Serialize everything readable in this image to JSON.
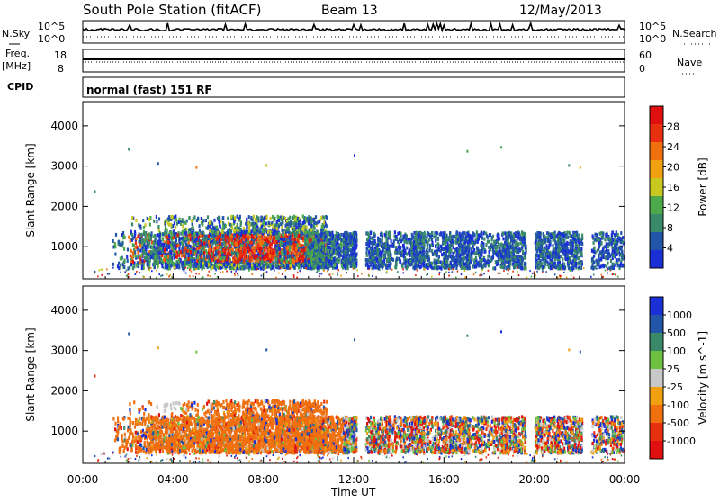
{
  "header": {
    "station": "South Pole Station (fitACF)",
    "beam": "Beam 13",
    "date": "12/May/2013"
  },
  "sky_panel": {
    "left_label": "N.Sky",
    "right_label": "N.Search",
    "left_ticks": [
      "10^5",
      "10^0"
    ],
    "right_ticks": [
      "10^5",
      "10^0"
    ]
  },
  "freq_panel": {
    "left_label_1": "Freq.",
    "left_label_2": "[MHz]",
    "right_label": "Nave",
    "left_ticks": [
      "18",
      "8"
    ],
    "right_ticks": [
      "60",
      "0"
    ]
  },
  "cpid": {
    "label": "CPID",
    "value": "normal (fast) 151 RF"
  },
  "colors": {
    "power": [
      "#1a2fd6",
      "#2255a8",
      "#3a8a6a",
      "#4caa4c",
      "#c8c820",
      "#f0a010",
      "#f07010",
      "#e83010",
      "#e01010"
    ],
    "velocity": [
      "#1a2fd6",
      "#2255a8",
      "#3a8a6a",
      "#6ec040",
      "#c8c8c8",
      "#f0a010",
      "#f07010",
      "#e83010",
      "#e01010"
    ]
  },
  "chart_data": [
    {
      "type": "heatmap",
      "name": "power",
      "xlabel": "Time UT",
      "ylabel": "Slant Range [km]",
      "colorbar_label": "Power [dB]",
      "x_ticks": [
        "00:00",
        "04:00",
        "08:00",
        "12:00",
        "16:00",
        "20:00",
        "00:00"
      ],
      "y_ticks": [
        1000,
        2000,
        3000,
        4000
      ],
      "ylim": [
        200,
        4600
      ],
      "xlim_hours": [
        0,
        24
      ],
      "colorbar_ticks": [
        "4",
        "8",
        "12",
        "16",
        "20",
        "24",
        "28"
      ],
      "cells": [
        [
          1.2,
          8.0,
          3
        ],
        [
          1.5,
          7.5,
          3
        ],
        [
          2.0,
          7.0,
          4
        ],
        [
          2.5,
          6.5,
          3
        ],
        [
          2.7,
          8.5,
          3
        ],
        [
          3.0,
          9.0,
          3
        ],
        [
          3.5,
          7.8,
          4
        ],
        [
          4.8,
          10.0,
          3
        ],
        [
          5.5,
          9.5,
          4
        ],
        [
          6.5,
          9.8,
          4
        ],
        [
          7.5,
          9.5,
          4
        ],
        [
          8.5,
          10.5,
          3
        ],
        [
          9.2,
          10.2,
          4
        ],
        [
          9.8,
          10.0,
          3
        ],
        [
          10.5,
          11.0,
          3
        ],
        [
          11.5,
          11.5,
          2
        ],
        [
          12.5,
          13.0,
          2
        ],
        [
          13.5,
          14.5,
          2
        ],
        [
          14.5,
          15.5,
          2
        ],
        [
          16.0,
          16.5,
          2
        ],
        [
          17.0,
          18.0,
          2
        ],
        [
          18.5,
          19.0,
          2
        ],
        [
          20.0,
          20.5,
          2
        ],
        [
          21.0,
          21.5,
          2
        ],
        [
          22.5,
          23.5,
          2
        ]
      ]
    },
    {
      "type": "heatmap",
      "name": "velocity",
      "xlabel": "Time UT",
      "ylabel": "Slant Range [km]",
      "colorbar_label": "Velocity [m s^-1]",
      "x_ticks": [
        "00:00",
        "04:00",
        "08:00",
        "12:00",
        "16:00",
        "20:00",
        "00:00"
      ],
      "y_ticks": [
        1000,
        2000,
        3000,
        4000
      ],
      "ylim": [
        200,
        4600
      ],
      "xlim_hours": [
        0,
        24
      ],
      "colorbar_ticks": [
        "1000",
        "500",
        "100",
        "25",
        "-25",
        "-100",
        "-500",
        "-1000"
      ]
    }
  ]
}
